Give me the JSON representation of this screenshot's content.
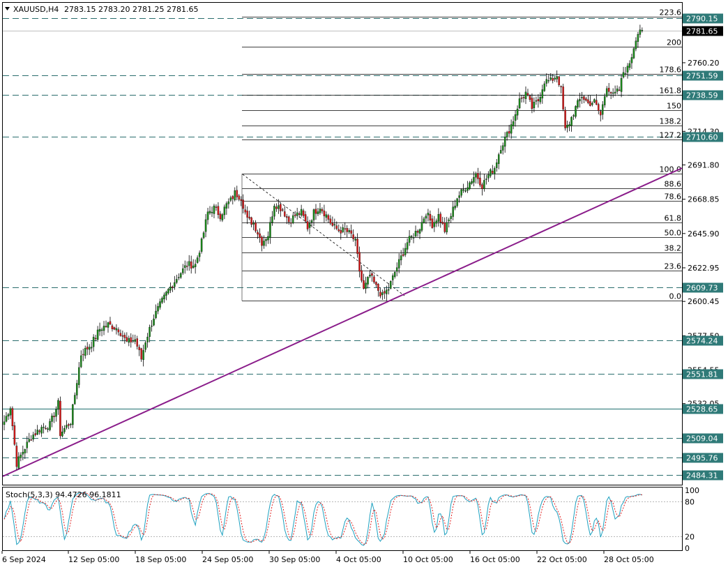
{
  "header": {
    "symbol": "XAUUSD,H4",
    "ohlc": "2783.15 2783.20 2781.25 2781.65"
  },
  "chart_data": {
    "type": "candlestick",
    "symbol": "XAUUSD",
    "timeframe": "H4",
    "ylim": [
      2470,
      2808
    ],
    "y_ticks": [
      "2760.20",
      "2714.30",
      "2691.80",
      "2668.85",
      "2645.90",
      "2622.95",
      "2600.45",
      "2577.50",
      "2554.55",
      "2532.05",
      "2509.55"
    ],
    "x_ticks": [
      "6 Sep 2024",
      "12 Sep 05:00",
      "18 Sep 05:00",
      "24 Sep 05:00",
      "30 Sep 05:00",
      "4 Oct 05:00",
      "10 Oct 05:00",
      "16 Oct 05:00",
      "22 Oct 05:00",
      "28 Oct 05:00"
    ],
    "last_price": "2781.65",
    "levels": [
      {
        "label": "2790.15",
        "value": 2790.15
      },
      {
        "label": "2751.59",
        "value": 2751.59
      },
      {
        "label": "2738.59",
        "value": 2738.59
      },
      {
        "label": "2710.60",
        "value": 2710.6
      },
      {
        "label": "2609.73",
        "value": 2609.73
      },
      {
        "label": "2574.24",
        "value": 2574.24
      },
      {
        "label": "2551.81",
        "value": 2551.81
      },
      {
        "label": "2528.65",
        "value": 2528.65
      },
      {
        "label": "2509.04",
        "value": 2509.04
      },
      {
        "label": "2495.76",
        "value": 2495.76
      },
      {
        "label": "2484.31",
        "value": 2484.31
      }
    ],
    "fibonacci": [
      {
        "label": "0.0",
        "value": 2600.9
      },
      {
        "label": "23.6",
        "value": 2621.0
      },
      {
        "label": "38.2",
        "value": 2633.4
      },
      {
        "label": "50.0",
        "value": 2643.5
      },
      {
        "label": "61.8",
        "value": 2653.4
      },
      {
        "label": "78.6",
        "value": 2667.8
      },
      {
        "label": "88.6",
        "value": 2676.2
      },
      {
        "label": "100.0",
        "value": 2685.9
      },
      {
        "label": "127.2",
        "value": 2709.0
      },
      {
        "label": "138.2",
        "value": 2718.4
      },
      {
        "label": "150",
        "value": 2728.4
      },
      {
        "label": "161.8",
        "value": 2738.5
      },
      {
        "label": "178.6",
        "value": 2752.8
      },
      {
        "label": "200",
        "value": 2771.0
      },
      {
        "label": "223.6",
        "value": 2791.0
      }
    ],
    "waypoints": [
      [
        0,
        2520
      ],
      [
        3,
        2530
      ],
      [
        6,
        2492
      ],
      [
        9,
        2500
      ],
      [
        13,
        2510
      ],
      [
        18,
        2516
      ],
      [
        22,
        2518
      ],
      [
        26,
        2532
      ],
      [
        27,
        2512
      ],
      [
        32,
        2520
      ],
      [
        37,
        2565
      ],
      [
        42,
        2572
      ],
      [
        46,
        2582
      ],
      [
        50,
        2585
      ],
      [
        55,
        2582
      ],
      [
        59,
        2573
      ],
      [
        63,
        2575
      ],
      [
        66,
        2562
      ],
      [
        68,
        2574
      ],
      [
        72,
        2590
      ],
      [
        75,
        2598
      ],
      [
        79,
        2608
      ],
      [
        84,
        2618
      ],
      [
        88,
        2625
      ],
      [
        92,
        2625
      ],
      [
        95,
        2640
      ],
      [
        98,
        2660
      ],
      [
        101,
        2663
      ],
      [
        104,
        2658
      ],
      [
        107,
        2665
      ],
      [
        109,
        2668
      ],
      [
        111,
        2673
      ],
      [
        114,
        2670
      ],
      [
        117,
        2655
      ],
      [
        120,
        2653
      ],
      [
        124,
        2640
      ],
      [
        127,
        2645
      ],
      [
        130,
        2666
      ],
      [
        134,
        2662
      ],
      [
        137,
        2654
      ],
      [
        140,
        2658
      ],
      [
        143,
        2660
      ],
      [
        146,
        2650
      ],
      [
        149,
        2660
      ],
      [
        152,
        2664
      ],
      [
        155,
        2658
      ],
      [
        158,
        2651
      ],
      [
        161,
        2648
      ],
      [
        164,
        2648
      ],
      [
        167,
        2645
      ],
      [
        169,
        2640
      ],
      [
        171,
        2621
      ],
      [
        173,
        2608
      ],
      [
        176,
        2618
      ],
      [
        179,
        2610
      ],
      [
        182,
        2604
      ],
      [
        185,
        2609
      ],
      [
        188,
        2620
      ],
      [
        191,
        2630
      ],
      [
        194,
        2640
      ],
      [
        197,
        2645
      ],
      [
        200,
        2650
      ],
      [
        203,
        2660
      ],
      [
        206,
        2652
      ],
      [
        209,
        2658
      ],
      [
        212,
        2648
      ],
      [
        215,
        2658
      ],
      [
        218,
        2670
      ],
      [
        221,
        2675
      ],
      [
        224,
        2680
      ],
      [
        227,
        2686
      ],
      [
        230,
        2678
      ],
      [
        233,
        2685
      ],
      [
        236,
        2690
      ],
      [
        239,
        2704
      ],
      [
        242,
        2712
      ],
      [
        245,
        2722
      ],
      [
        248,
        2735
      ],
      [
        251,
        2740
      ],
      [
        254,
        2730
      ],
      [
        257,
        2735
      ],
      [
        260,
        2748
      ],
      [
        263,
        2748
      ],
      [
        266,
        2752
      ],
      [
        268,
        2742
      ],
      [
        270,
        2715
      ],
      [
        272,
        2720
      ],
      [
        275,
        2730
      ],
      [
        278,
        2738
      ],
      [
        281,
        2733
      ],
      [
        284,
        2734
      ],
      [
        287,
        2725
      ],
      [
        290,
        2745
      ],
      [
        293,
        2738
      ],
      [
        296,
        2742
      ],
      [
        298,
        2754
      ],
      [
        300,
        2756
      ],
      [
        302,
        2765
      ],
      [
        304,
        2777
      ],
      [
        306,
        2783
      ],
      [
        307,
        2782
      ]
    ],
    "stochastic": {
      "label": "Stoch(5,3,3) 94.4726 96.1811",
      "ylim": [
        0,
        100
      ],
      "levels": [
        "100",
        "80",
        "20",
        "0"
      ],
      "main_value": 94.4726,
      "signal_value": 96.1811
    }
  }
}
